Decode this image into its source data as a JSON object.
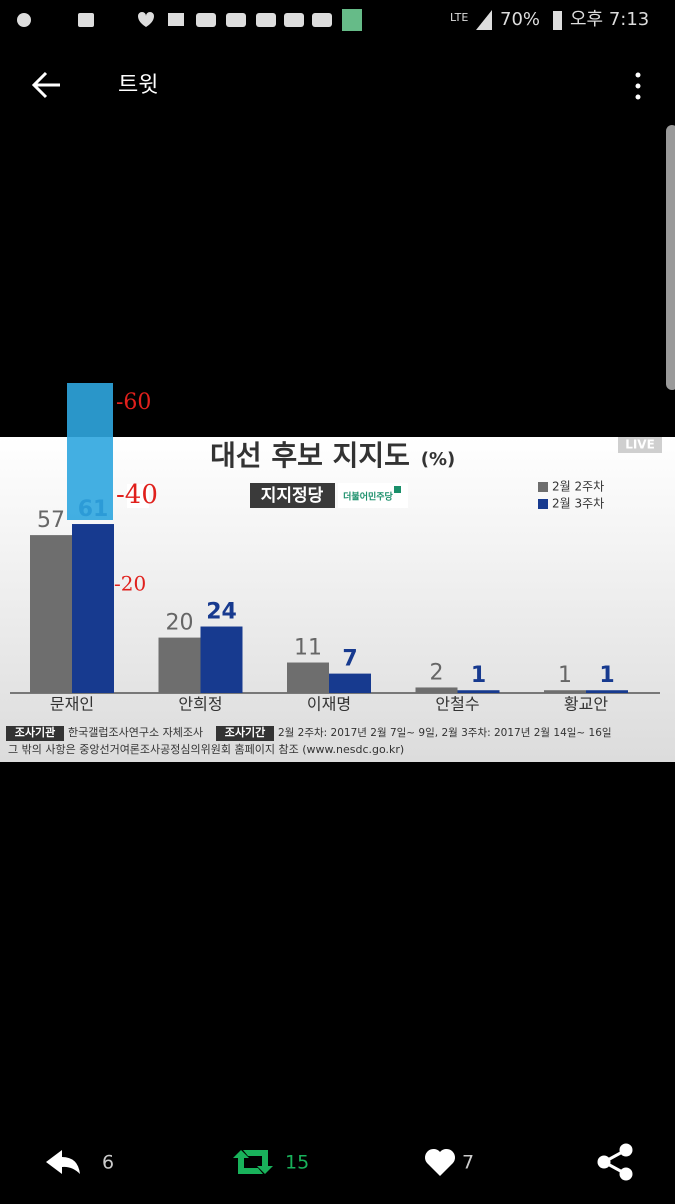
{
  "status_bar": {
    "network": "LTE",
    "battery": "70%",
    "time": "오후 7:13"
  },
  "header": {
    "title": "트윗"
  },
  "chart_data": {
    "type": "bar",
    "title": "대선 후보 지지도",
    "title_unit": "(%)",
    "badge": "지지정당",
    "party_logo": "더불어민주당",
    "live": "LIVE",
    "categories": [
      "문재인",
      "안희정",
      "이재명",
      "안철수",
      "황교안"
    ],
    "series": [
      {
        "name": "2월 2주차",
        "color": "#6e6e6e",
        "values": [
          57,
          20,
          11,
          2,
          1
        ]
      },
      {
        "name": "2월 3주차",
        "color": "#173a8f",
        "values": [
          61,
          24,
          7,
          1,
          1
        ]
      }
    ],
    "footer": {
      "org_label": "조사기관",
      "org": "한국갤럽조사연구소 자체조사",
      "period_label": "조사기간",
      "period": "2월 2주차: 2017년 2월 7일~ 9일, 2월 3주차: 2017년 2월 14일~ 16일",
      "note": "그 밖의 사항은 중앙선거여론조사공정심의위원회 홈페이지 참조 (www.nesdc.go.kr)"
    },
    "annotations": [
      "-60",
      "-40",
      "-20"
    ]
  },
  "actions": {
    "replies": 6,
    "retweets": 15,
    "likes": 7
  }
}
